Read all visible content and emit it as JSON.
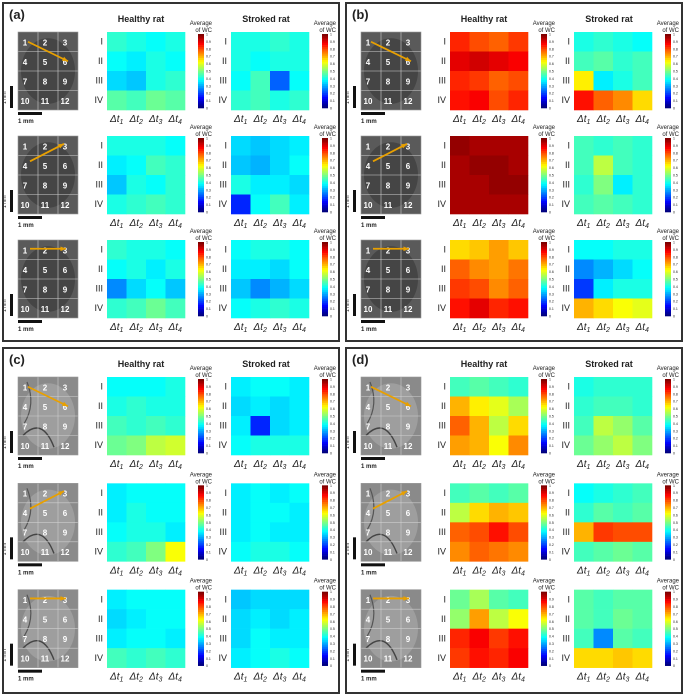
{
  "panels": [
    {
      "label": "(a)",
      "rows": [
        {
          "healthy": [
            [
              0.42,
              0.4,
              0.38,
              0.4
            ],
            [
              0.38,
              0.36,
              0.4,
              0.38
            ],
            [
              0.34,
              0.32,
              0.4,
              0.42
            ],
            [
              0.46,
              0.44,
              0.48,
              0.46
            ]
          ],
          "stroked": [
            [
              0.4,
              0.4,
              0.42,
              0.4
            ],
            [
              0.4,
              0.38,
              0.4,
              0.4
            ],
            [
              0.38,
              0.44,
              0.22,
              0.38
            ],
            [
              0.42,
              0.44,
              0.4,
              0.42
            ]
          ]
        },
        {
          "healthy": [
            [
              0.4,
              0.4,
              0.4,
              0.38
            ],
            [
              0.36,
              0.38,
              0.44,
              0.42
            ],
            [
              0.32,
              0.4,
              0.38,
              0.42
            ],
            [
              0.4,
              0.42,
              0.44,
              0.42
            ]
          ],
          "stroked": [
            [
              0.34,
              0.32,
              0.34,
              0.36
            ],
            [
              0.32,
              0.3,
              0.34,
              0.38
            ],
            [
              0.4,
              0.36,
              0.36,
              0.34
            ],
            [
              0.16,
              0.38,
              0.44,
              0.36
            ]
          ]
        },
        {
          "healthy": [
            [
              0.42,
              0.4,
              0.4,
              0.38
            ],
            [
              0.38,
              0.4,
              0.36,
              0.4
            ],
            [
              0.26,
              0.34,
              0.38,
              0.32
            ],
            [
              0.42,
              0.44,
              0.48,
              0.44
            ]
          ],
          "stroked": [
            [
              0.38,
              0.4,
              0.4,
              0.38
            ],
            [
              0.36,
              0.36,
              0.34,
              0.38
            ],
            [
              0.32,
              0.26,
              0.3,
              0.34
            ],
            [
              0.38,
              0.4,
              0.42,
              0.4
            ]
          ]
        }
      ]
    },
    {
      "label": "(b)",
      "rows": [
        {
          "healthy": [
            [
              0.84,
              0.8,
              0.78,
              0.82
            ],
            [
              0.9,
              0.92,
              0.9,
              0.88
            ],
            [
              0.84,
              0.82,
              0.78,
              0.8
            ],
            [
              0.86,
              0.88,
              0.8,
              0.84
            ]
          ],
          "stroked": [
            [
              0.4,
              0.42,
              0.4,
              0.38
            ],
            [
              0.44,
              0.46,
              0.42,
              0.44
            ],
            [
              0.64,
              0.36,
              0.4,
              0.44
            ],
            [
              0.86,
              0.78,
              0.74,
              0.66
            ]
          ]
        },
        {
          "healthy": [
            [
              0.98,
              0.96,
              0.96,
              0.96
            ],
            [
              0.96,
              0.98,
              0.98,
              0.96
            ],
            [
              0.96,
              0.96,
              0.98,
              0.98
            ],
            [
              0.96,
              0.96,
              0.96,
              0.96
            ]
          ],
          "stroked": [
            [
              0.44,
              0.42,
              0.44,
              0.42
            ],
            [
              0.44,
              0.56,
              0.44,
              0.42
            ],
            [
              0.42,
              0.5,
              0.36,
              0.42
            ],
            [
              0.44,
              0.46,
              0.44,
              0.42
            ]
          ]
        },
        {
          "healthy": [
            [
              0.66,
              0.68,
              0.72,
              0.68
            ],
            [
              0.78,
              0.74,
              0.72,
              0.76
            ],
            [
              0.82,
              0.8,
              0.74,
              0.78
            ],
            [
              0.86,
              0.9,
              0.84,
              0.86
            ]
          ],
          "stroked": [
            [
              0.38,
              0.38,
              0.4,
              0.4
            ],
            [
              0.26,
              0.3,
              0.34,
              0.38
            ],
            [
              0.18,
              0.36,
              0.4,
              0.4
            ],
            [
              0.7,
              0.66,
              0.62,
              0.6
            ]
          ]
        }
      ]
    },
    {
      "label": "(c)",
      "rows": [
        {
          "healthy": [
            [
              0.38,
              0.38,
              0.38,
              0.4
            ],
            [
              0.4,
              0.42,
              0.4,
              0.4
            ],
            [
              0.44,
              0.42,
              0.44,
              0.42
            ],
            [
              0.48,
              0.5,
              0.56,
              0.58
            ]
          ],
          "stroked": [
            [
              0.36,
              0.38,
              0.38,
              0.36
            ],
            [
              0.34,
              0.36,
              0.34,
              0.36
            ],
            [
              0.36,
              0.16,
              0.34,
              0.36
            ],
            [
              0.38,
              0.4,
              0.4,
              0.4
            ]
          ]
        },
        {
          "healthy": [
            [
              0.36,
              0.38,
              0.38,
              0.38
            ],
            [
              0.36,
              0.4,
              0.38,
              0.38
            ],
            [
              0.38,
              0.4,
              0.4,
              0.36
            ],
            [
              0.42,
              0.44,
              0.5,
              0.62
            ]
          ],
          "stroked": [
            [
              0.36,
              0.38,
              0.36,
              0.38
            ],
            [
              0.36,
              0.38,
              0.38,
              0.36
            ],
            [
              0.36,
              0.38,
              0.36,
              0.36
            ],
            [
              0.38,
              0.4,
              0.4,
              0.38
            ]
          ]
        },
        {
          "healthy": [
            [
              0.36,
              0.38,
              0.38,
              0.38
            ],
            [
              0.34,
              0.36,
              0.38,
              0.38
            ],
            [
              0.36,
              0.38,
              0.38,
              0.36
            ],
            [
              0.44,
              0.42,
              0.44,
              0.42
            ]
          ],
          "stroked": [
            [
              0.32,
              0.34,
              0.34,
              0.34
            ],
            [
              0.34,
              0.36,
              0.34,
              0.36
            ],
            [
              0.34,
              0.38,
              0.36,
              0.36
            ],
            [
              0.36,
              0.38,
              0.4,
              0.38
            ]
          ]
        }
      ]
    },
    {
      "label": "(d)",
      "rows": [
        {
          "healthy": [
            [
              0.44,
              0.46,
              0.44,
              0.42
            ],
            [
              0.7,
              0.64,
              0.6,
              0.54
            ],
            [
              0.78,
              0.7,
              0.56,
              0.66
            ],
            [
              0.72,
              0.7,
              0.62,
              0.74
            ]
          ],
          "stroked": [
            [
              0.4,
              0.42,
              0.42,
              0.42
            ],
            [
              0.42,
              0.44,
              0.44,
              0.42
            ],
            [
              0.44,
              0.56,
              0.52,
              0.46
            ],
            [
              0.48,
              0.52,
              0.56,
              0.5
            ]
          ]
        },
        {
          "healthy": [
            [
              0.44,
              0.46,
              0.44,
              0.46
            ],
            [
              0.56,
              0.66,
              0.7,
              0.68
            ],
            [
              0.78,
              0.8,
              0.86,
              0.8
            ],
            [
              0.74,
              0.78,
              0.76,
              0.74
            ]
          ],
          "stroked": [
            [
              0.38,
              0.4,
              0.42,
              0.44
            ],
            [
              0.42,
              0.46,
              0.44,
              0.46
            ],
            [
              0.7,
              0.82,
              0.8,
              0.8
            ],
            [
              0.44,
              0.46,
              0.48,
              0.46
            ]
          ]
        },
        {
          "healthy": [
            [
              0.48,
              0.54,
              0.46,
              0.44
            ],
            [
              0.52,
              0.72,
              0.56,
              0.62
            ],
            [
              0.84,
              0.88,
              0.82,
              0.86
            ],
            [
              0.82,
              0.86,
              0.84,
              0.88
            ]
          ],
          "stroked": [
            [
              0.46,
              0.44,
              0.46,
              0.46
            ],
            [
              0.46,
              0.44,
              0.48,
              0.46
            ],
            [
              0.44,
              0.26,
              0.46,
              0.44
            ],
            [
              0.66,
              0.66,
              0.68,
              0.66
            ]
          ]
        }
      ]
    }
  ],
  "headings": {
    "healthy": "Healthy rat",
    "stroked": "Stroked rat"
  },
  "colorbar_title": [
    "Average",
    "of WC"
  ],
  "colorbar_ticks": [
    "1",
    "0.9",
    "0.8",
    "0.7",
    "0.6",
    "0.5",
    "0.4",
    "0.3",
    "0.2",
    "0.1",
    "0"
  ],
  "row_labels": [
    "I",
    "II",
    "III",
    "IV"
  ],
  "col_labels": [
    "Δt1",
    "Δt2",
    "Δt3",
    "Δt4"
  ],
  "scale_label": "1 mm",
  "scale_label_v": "1 mm",
  "region_labels": [
    "1",
    "2",
    "3",
    "4",
    "5",
    "6",
    "7",
    "8",
    "9",
    "10",
    "11",
    "12"
  ]
}
